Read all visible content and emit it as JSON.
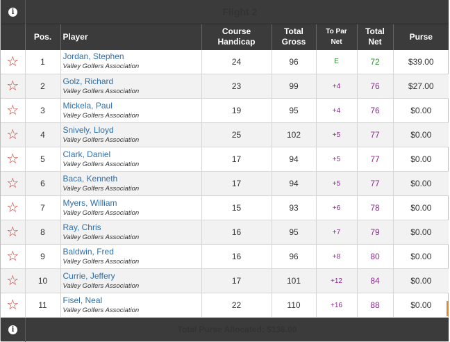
{
  "flight": {
    "title": "Flight 2"
  },
  "columns": {
    "pos": "Pos.",
    "player": "Player",
    "course_handicap_1": "Course",
    "course_handicap_2": "Handicap",
    "total_gross_1": "Total",
    "total_gross_2": "Gross",
    "to_par_net_1": "To Par",
    "to_par_net_2": "Net",
    "total_net_1": "Total",
    "total_net_2": "Net",
    "purse": "Purse"
  },
  "rows": [
    {
      "pos": "1",
      "name": "Jordan, Stephen",
      "assoc": "Valley Golfers Association",
      "handicap": "24",
      "gross": "96",
      "topar": "E",
      "net": "72",
      "purse": "$39.00"
    },
    {
      "pos": "2",
      "name": "Golz, Richard",
      "assoc": "Valley Golfers Association",
      "handicap": "23",
      "gross": "99",
      "topar": "+4",
      "net": "76",
      "purse": "$27.00"
    },
    {
      "pos": "3",
      "name": "Mickela, Paul",
      "assoc": "Valley Golfers Association",
      "handicap": "19",
      "gross": "95",
      "topar": "+4",
      "net": "76",
      "purse": "$0.00"
    },
    {
      "pos": "4",
      "name": "Snively, Lloyd",
      "assoc": "Valley Golfers Association",
      "handicap": "25",
      "gross": "102",
      "topar": "+5",
      "net": "77",
      "purse": "$0.00"
    },
    {
      "pos": "5",
      "name": "Clark, Daniel",
      "assoc": "Valley Golfers Association",
      "handicap": "17",
      "gross": "94",
      "topar": "+5",
      "net": "77",
      "purse": "$0.00"
    },
    {
      "pos": "6",
      "name": "Baca, Kenneth",
      "assoc": "Valley Golfers Association",
      "handicap": "17",
      "gross": "94",
      "topar": "+5",
      "net": "77",
      "purse": "$0.00"
    },
    {
      "pos": "7",
      "name": "Myers, William",
      "assoc": "Valley Golfers Association",
      "handicap": "15",
      "gross": "93",
      "topar": "+6",
      "net": "78",
      "purse": "$0.00"
    },
    {
      "pos": "8",
      "name": "Ray, Chris",
      "assoc": "Valley Golfers Association",
      "handicap": "16",
      "gross": "95",
      "topar": "+7",
      "net": "79",
      "purse": "$0.00"
    },
    {
      "pos": "9",
      "name": "Baldwin, Fred",
      "assoc": "Valley Golfers Association",
      "handicap": "16",
      "gross": "96",
      "topar": "+8",
      "net": "80",
      "purse": "$0.00"
    },
    {
      "pos": "10",
      "name": "Currie, Jeffery",
      "assoc": "Valley Golfers Association",
      "handicap": "17",
      "gross": "101",
      "topar": "+12",
      "net": "84",
      "purse": "$0.00"
    },
    {
      "pos": "11",
      "name": "Fisel, Neal",
      "assoc": "Valley Golfers Association",
      "handicap": "22",
      "gross": "110",
      "topar": "+16",
      "net": "88",
      "purse": "$0.00"
    }
  ],
  "footer": {
    "total_purse": "Total Purse Allocated: $136.00"
  },
  "icons": {
    "info": "info-icon",
    "favorite": "star-outline-icon"
  },
  "colors": {
    "header_bg": "#3b3b3b",
    "star": "#cc3a2e",
    "link": "#2f6ea7",
    "even_par": "#2e8b2e",
    "over_par": "#8b2a8e",
    "accent": "#e8872a"
  }
}
